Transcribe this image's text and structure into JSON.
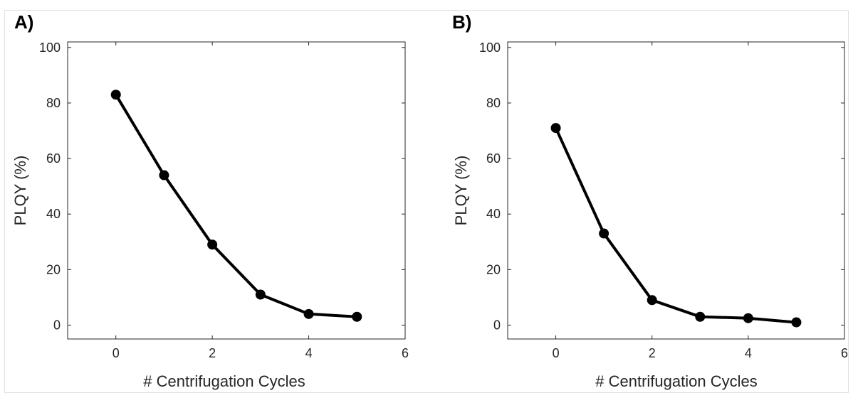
{
  "chart_data": [
    {
      "type": "line",
      "panel_label": "A)",
      "xlabel": "# Centrifugation Cycles",
      "ylabel": "PLQY (%)",
      "xlim": [
        -1,
        6
      ],
      "ylim": [
        -5,
        102
      ],
      "xticks": [
        0,
        2,
        4,
        6
      ],
      "yticks": [
        0,
        20,
        40,
        60,
        80,
        100
      ],
      "grid": false,
      "x": [
        0,
        1,
        2,
        3,
        4,
        5
      ],
      "y": [
        83,
        54,
        29,
        11,
        4,
        3
      ],
      "color": "#000000",
      "marker": "circle"
    },
    {
      "type": "line",
      "panel_label": "B)",
      "xlabel": "# Centrifugation Cycles",
      "ylabel": "PLQY (%)",
      "xlim": [
        -1,
        6
      ],
      "ylim": [
        -5,
        102
      ],
      "xticks": [
        0,
        2,
        4,
        6
      ],
      "yticks": [
        0,
        20,
        40,
        60,
        80,
        100
      ],
      "grid": false,
      "x": [
        0,
        1,
        2,
        3,
        4,
        5
      ],
      "y": [
        71,
        33,
        9,
        3,
        2.5,
        1
      ],
      "color": "#000000",
      "marker": "circle"
    }
  ]
}
